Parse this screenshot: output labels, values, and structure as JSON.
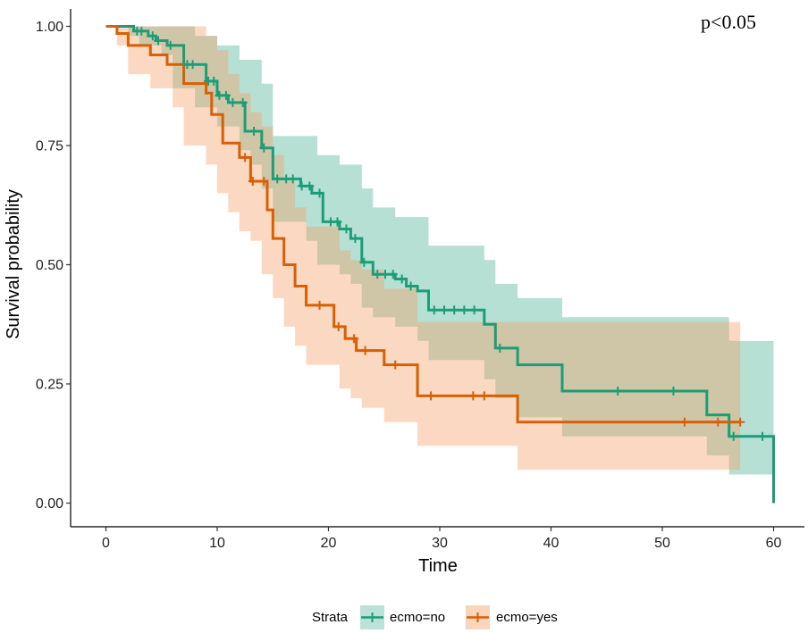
{
  "chart_data": {
    "type": "kaplan-meier",
    "xlabel": "Time",
    "ylabel": "Survival probability",
    "xlim": [
      -3,
      61.5
    ],
    "ylim": [
      -0.05,
      1.05
    ],
    "xticks": [
      0,
      10,
      20,
      30,
      40,
      50,
      60
    ],
    "yticks": [
      0.0,
      0.25,
      0.5,
      0.75,
      1.0
    ],
    "ytick_labels": [
      "0.00",
      "0.25",
      "0.50",
      "0.75",
      "1.00"
    ],
    "annotation": "p<0.05",
    "legend": {
      "title": "Strata",
      "position": "bottom"
    },
    "series": [
      {
        "name": "ecmo=no",
        "color": "#1b9e77",
        "band_color": "#1b9e77",
        "steps": [
          [
            0,
            1.0
          ],
          [
            2.5,
            0.99
          ],
          [
            3.8,
            0.98
          ],
          [
            4.5,
            0.97
          ],
          [
            5.5,
            0.96
          ],
          [
            7,
            0.92
          ],
          [
            9,
            0.885
          ],
          [
            10,
            0.855
          ],
          [
            11,
            0.84
          ],
          [
            12.5,
            0.78
          ],
          [
            14,
            0.745
          ],
          [
            15,
            0.68
          ],
          [
            17.5,
            0.665
          ],
          [
            18.5,
            0.65
          ],
          [
            19.5,
            0.59
          ],
          [
            21,
            0.575
          ],
          [
            22,
            0.555
          ],
          [
            23,
            0.505
          ],
          [
            24,
            0.48
          ],
          [
            26,
            0.47
          ],
          [
            27,
            0.455
          ],
          [
            28,
            0.445
          ],
          [
            29,
            0.405
          ],
          [
            34,
            0.375
          ],
          [
            35,
            0.325
          ],
          [
            37,
            0.29
          ],
          [
            41,
            0.235
          ],
          [
            54,
            0.185
          ],
          [
            56,
            0.14
          ],
          [
            60,
            0.0
          ]
        ],
        "end": 60,
        "lower": [
          [
            0,
            1.0
          ],
          [
            2,
            0.98
          ],
          [
            3,
            0.96
          ],
          [
            5,
            0.94
          ],
          [
            6,
            0.87
          ],
          [
            8,
            0.83
          ],
          [
            10,
            0.79
          ],
          [
            12,
            0.74
          ],
          [
            13,
            0.71
          ],
          [
            14,
            0.66
          ],
          [
            15,
            0.59
          ],
          [
            18,
            0.55
          ],
          [
            19,
            0.5
          ],
          [
            21,
            0.48
          ],
          [
            22,
            0.46
          ],
          [
            23,
            0.41
          ],
          [
            24,
            0.39
          ],
          [
            26,
            0.37
          ],
          [
            28,
            0.34
          ],
          [
            29,
            0.3
          ],
          [
            34,
            0.26
          ],
          [
            35,
            0.22
          ],
          [
            37,
            0.18
          ],
          [
            41,
            0.14
          ],
          [
            54,
            0.1
          ],
          [
            56,
            0.06
          ],
          [
            60,
            0.06
          ]
        ],
        "upper": [
          [
            0,
            1.0
          ],
          [
            6,
            1.0
          ],
          [
            8,
            0.98
          ],
          [
            10,
            0.96
          ],
          [
            12,
            0.93
          ],
          [
            14,
            0.88
          ],
          [
            15,
            0.77
          ],
          [
            19,
            0.73
          ],
          [
            21,
            0.71
          ],
          [
            23,
            0.66
          ],
          [
            24,
            0.62
          ],
          [
            26,
            0.6
          ],
          [
            29,
            0.54
          ],
          [
            34,
            0.51
          ],
          [
            35,
            0.46
          ],
          [
            37,
            0.43
          ],
          [
            41,
            0.39
          ],
          [
            54,
            0.39
          ],
          [
            56,
            0.34
          ],
          [
            60,
            0.34
          ]
        ],
        "censors": [
          2.8,
          3.2,
          4.2,
          4.7,
          5.8,
          7.3,
          7.8,
          9.2,
          9.7,
          10.2,
          10.8,
          11.4,
          12.3,
          13.3,
          14.2,
          15.4,
          16.2,
          16.8,
          17.6,
          18.3,
          19.2,
          20.2,
          20.8,
          21.6,
          22.4,
          23.2,
          24.4,
          25.1,
          25.8,
          26.6,
          27.4,
          29.5,
          30.4,
          31.3,
          32.2,
          33.1,
          35.4,
          46,
          51,
          56.4,
          59
        ]
      },
      {
        "name": "ecmo=yes",
        "color": "#d95f02",
        "band_color": "#f4a16b",
        "steps": [
          [
            0,
            1.0
          ],
          [
            1,
            0.985
          ],
          [
            2,
            0.96
          ],
          [
            4,
            0.94
          ],
          [
            5.5,
            0.92
          ],
          [
            7,
            0.88
          ],
          [
            9,
            0.86
          ],
          [
            9.5,
            0.815
          ],
          [
            10,
            0.815
          ],
          [
            10.5,
            0.755
          ],
          [
            12,
            0.725
          ],
          [
            13,
            0.675
          ],
          [
            14.5,
            0.615
          ],
          [
            15,
            0.555
          ],
          [
            16,
            0.5
          ],
          [
            17,
            0.455
          ],
          [
            18,
            0.415
          ],
          [
            20.5,
            0.37
          ],
          [
            21.5,
            0.345
          ],
          [
            22.5,
            0.32
          ],
          [
            25,
            0.29
          ],
          [
            28,
            0.225
          ],
          [
            37,
            0.17
          ]
        ],
        "end": 57,
        "lower": [
          [
            0,
            1.0
          ],
          [
            1,
            0.96
          ],
          [
            2,
            0.9
          ],
          [
            4,
            0.87
          ],
          [
            6,
            0.83
          ],
          [
            7,
            0.75
          ],
          [
            9,
            0.71
          ],
          [
            10,
            0.65
          ],
          [
            11,
            0.61
          ],
          [
            12,
            0.57
          ],
          [
            13,
            0.55
          ],
          [
            14,
            0.48
          ],
          [
            15,
            0.43
          ],
          [
            16,
            0.37
          ],
          [
            17,
            0.33
          ],
          [
            18,
            0.29
          ],
          [
            21,
            0.24
          ],
          [
            22,
            0.22
          ],
          [
            23,
            0.2
          ],
          [
            25,
            0.17
          ],
          [
            28,
            0.12
          ],
          [
            37,
            0.07
          ],
          [
            57,
            0.07
          ]
        ],
        "upper": [
          [
            0,
            1.0
          ],
          [
            2,
            1.0
          ],
          [
            4,
            1.0
          ],
          [
            6,
            1.0
          ],
          [
            7,
            1.0
          ],
          [
            9,
            0.98
          ],
          [
            10,
            0.95
          ],
          [
            11,
            0.9
          ],
          [
            12,
            0.86
          ],
          [
            13,
            0.82
          ],
          [
            14,
            0.79
          ],
          [
            15,
            0.73
          ],
          [
            16,
            0.68
          ],
          [
            17,
            0.62
          ],
          [
            18,
            0.58
          ],
          [
            21,
            0.53
          ],
          [
            22,
            0.51
          ],
          [
            23,
            0.49
          ],
          [
            25,
            0.45
          ],
          [
            28,
            0.38
          ],
          [
            37,
            0.38
          ],
          [
            57,
            0.38
          ]
        ],
        "censors": [
          12.5,
          13.2,
          14.2,
          19.2,
          20.9,
          22.3,
          23.3,
          26,
          29.2,
          33,
          34,
          52,
          55,
          57
        ]
      }
    ]
  }
}
